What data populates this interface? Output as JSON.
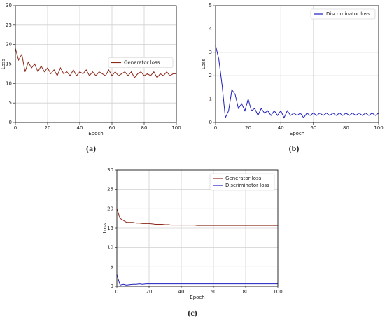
{
  "chart_data": [
    {
      "type": "line",
      "caption": "(a)",
      "x_label": "Epoch",
      "y_label": "Loss",
      "grid": true,
      "legend": "center right",
      "xlim": [
        0,
        100
      ],
      "xticks": [
        0,
        20,
        40,
        60,
        80,
        100
      ],
      "ylim": [
        0,
        30
      ],
      "yticks": [
        0,
        5,
        10,
        15,
        20,
        25,
        30
      ],
      "x": [
        0,
        2,
        4,
        6,
        8,
        10,
        12,
        14,
        16,
        18,
        20,
        22,
        24,
        26,
        28,
        30,
        32,
        34,
        36,
        38,
        40,
        42,
        44,
        46,
        48,
        50,
        52,
        54,
        56,
        58,
        60,
        62,
        64,
        66,
        68,
        70,
        72,
        74,
        76,
        78,
        80,
        82,
        84,
        86,
        88,
        90,
        92,
        94,
        96,
        98,
        100
      ],
      "series": [
        {
          "name": "Generator loss",
          "color": "#8b2a1a",
          "values": [
            19,
            16,
            17.5,
            13,
            15.5,
            14,
            15,
            13,
            14.5,
            13,
            14,
            12.5,
            13.5,
            12,
            14,
            12.5,
            13,
            12,
            13.5,
            12,
            13,
            12.5,
            13.5,
            12,
            13,
            12,
            13,
            12.5,
            12,
            13.5,
            12,
            13,
            12,
            12.5,
            13,
            12,
            13,
            11.5,
            12.5,
            13,
            12,
            12.5,
            12,
            13,
            11.5,
            12.5,
            12,
            13,
            12,
            12.5,
            12.5
          ]
        }
      ]
    },
    {
      "type": "line",
      "caption": "(b)",
      "x_label": "Epoch",
      "y_label": "Loss",
      "grid": true,
      "legend": "upper right",
      "xlim": [
        0,
        100
      ],
      "xticks": [
        0,
        20,
        40,
        60,
        80,
        100
      ],
      "ylim": [
        0,
        5
      ],
      "yticks": [
        0,
        1,
        2,
        3,
        4,
        5
      ],
      "x": [
        0,
        2,
        4,
        6,
        8,
        10,
        12,
        14,
        16,
        18,
        20,
        22,
        24,
        26,
        28,
        30,
        32,
        34,
        36,
        38,
        40,
        42,
        44,
        46,
        48,
        50,
        52,
        54,
        56,
        58,
        60,
        62,
        64,
        66,
        68,
        70,
        72,
        74,
        76,
        78,
        80,
        82,
        84,
        86,
        88,
        90,
        92,
        94,
        96,
        98,
        100
      ],
      "series": [
        {
          "name": "Discriminator loss",
          "color": "#1f1fbf",
          "values": [
            3.3,
            2.7,
            1.6,
            0.2,
            0.5,
            1.4,
            1.2,
            0.6,
            0.8,
            0.5,
            1.0,
            0.5,
            0.6,
            0.3,
            0.6,
            0.4,
            0.5,
            0.3,
            0.5,
            0.3,
            0.5,
            0.2,
            0.5,
            0.3,
            0.4,
            0.3,
            0.4,
            0.2,
            0.4,
            0.3,
            0.4,
            0.3,
            0.4,
            0.3,
            0.4,
            0.3,
            0.4,
            0.3,
            0.4,
            0.3,
            0.4,
            0.3,
            0.4,
            0.3,
            0.4,
            0.3,
            0.4,
            0.3,
            0.4,
            0.3,
            0.4
          ]
        }
      ]
    },
    {
      "type": "line",
      "caption": "(c)",
      "x_label": "Epoch",
      "y_label": "Loss",
      "grid": true,
      "legend": "upper right",
      "xlim": [
        0,
        100
      ],
      "xticks": [
        0,
        20,
        40,
        60,
        80,
        100
      ],
      "ylim": [
        0,
        30
      ],
      "yticks": [
        0,
        5,
        10,
        15,
        20,
        25,
        30
      ],
      "x": [
        0,
        2,
        4,
        6,
        8,
        10,
        12,
        14,
        16,
        18,
        20,
        22,
        24,
        26,
        28,
        30,
        32,
        34,
        36,
        38,
        40,
        42,
        44,
        46,
        48,
        50,
        52,
        54,
        56,
        58,
        60,
        62,
        64,
        66,
        68,
        70,
        72,
        74,
        76,
        78,
        80,
        82,
        84,
        86,
        88,
        90,
        92,
        94,
        96,
        98,
        100
      ],
      "series": [
        {
          "name": "Generator loss",
          "color": "#8b2a1a",
          "values": [
            20,
            17.5,
            17,
            16.5,
            16.5,
            16.5,
            16.3,
            16.3,
            16.2,
            16.2,
            16.2,
            16.1,
            16,
            16,
            16,
            15.9,
            15.9,
            15.8,
            15.8,
            15.8,
            15.8,
            15.8,
            15.8,
            15.8,
            15.8,
            15.7,
            15.7,
            15.7,
            15.7,
            15.7,
            15.7,
            15.7,
            15.7,
            15.7,
            15.7,
            15.7,
            15.7,
            15.7,
            15.7,
            15.7,
            15.7,
            15.7,
            15.7,
            15.7,
            15.7,
            15.7,
            15.7,
            15.7,
            15.7,
            15.7,
            15.7
          ]
        },
        {
          "name": "Discriminator loss",
          "color": "#1f1fbf",
          "values": [
            3,
            0.3,
            0.5,
            0.3,
            0.4,
            0.5,
            0.5,
            0.6,
            0.5,
            0.6,
            0.6,
            0.6,
            0.6,
            0.6,
            0.6,
            0.6,
            0.6,
            0.6,
            0.6,
            0.6,
            0.6,
            0.6,
            0.6,
            0.6,
            0.6,
            0.6,
            0.6,
            0.6,
            0.6,
            0.6,
            0.6,
            0.6,
            0.6,
            0.6,
            0.6,
            0.6,
            0.6,
            0.6,
            0.6,
            0.6,
            0.6,
            0.6,
            0.6,
            0.6,
            0.6,
            0.6,
            0.6,
            0.6,
            0.6,
            0.6,
            0.6
          ]
        }
      ]
    }
  ]
}
